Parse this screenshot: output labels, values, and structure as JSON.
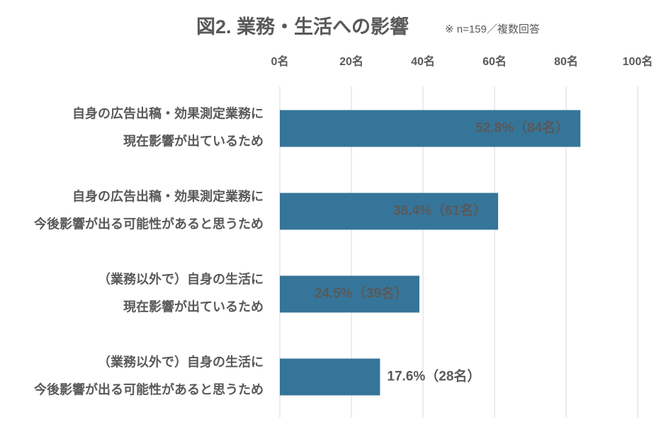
{
  "chart_data": {
    "type": "bar",
    "orientation": "horizontal",
    "title": "図2.  業務・生活への影響",
    "subtitle": "※ n=159／複数回答",
    "categories": [
      [
        "自身の広告出稿・効果測定業務に",
        "現在影響が出ているため"
      ],
      [
        "自身の広告出稿・効果測定業務に",
        "今後影響が出る可能性があると思うため"
      ],
      [
        "（業務以外で）自身の生活に",
        "現在影響が出ているため"
      ],
      [
        "（業務以外で）自身の生活に",
        "今後影響が出る可能性があると思うため"
      ]
    ],
    "values": [
      84,
      61,
      39,
      28
    ],
    "value_labels": [
      "52.8%（84名）",
      "38.4%（61名）",
      "24.5%（39名）",
      "17.6%（28名）"
    ],
    "color": "#36759a",
    "xlim": [
      0,
      100
    ],
    "xticks": [
      {
        "value": 0,
        "label": "0名"
      },
      {
        "value": 20,
        "label": "20名"
      },
      {
        "value": 40,
        "label": "40名"
      },
      {
        "value": 60,
        "label": "60名"
      },
      {
        "value": 80,
        "label": "80名"
      },
      {
        "value": 100,
        "label": "100名"
      }
    ],
    "grid": true
  }
}
